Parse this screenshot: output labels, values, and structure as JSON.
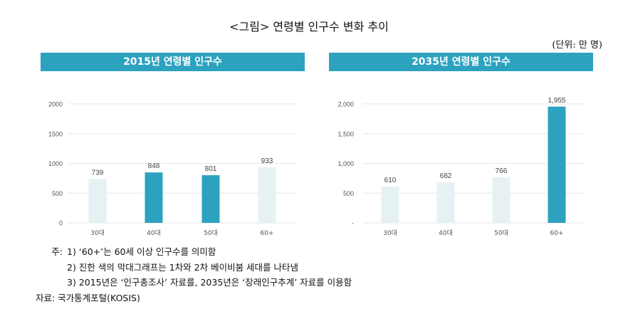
{
  "title": "<그림> 연령별 인구수 변화 추이",
  "unit": "(단위: 만 명)",
  "colors": {
    "header": "#2ca2bf",
    "dark_bar": "#2ca2bf",
    "light_bar": "#e6f1f4",
    "grid": "#e6e6e6"
  },
  "chart_data": [
    {
      "type": "bar",
      "title": "2015년 연령별 인구수",
      "categories": [
        "30대",
        "40대",
        "50대",
        "60+"
      ],
      "values": [
        739,
        848,
        801,
        933
      ],
      "data_labels": [
        "739",
        "848",
        "801",
        "933"
      ],
      "highlight": [
        false,
        true,
        true,
        false
      ],
      "yticks": [
        0,
        500,
        1000,
        1500,
        2000
      ],
      "ytick_labels": [
        "0",
        "500",
        "1000",
        "1500",
        "2000"
      ],
      "ylim": [
        0,
        2000
      ],
      "grid": true
    },
    {
      "type": "bar",
      "title": "2035년 연령별 인구수",
      "categories": [
        "30대",
        "40대",
        "50대",
        "60+"
      ],
      "values": [
        610,
        682,
        766,
        1955
      ],
      "data_labels": [
        "610",
        "682",
        "766",
        "1,955"
      ],
      "highlight": [
        false,
        false,
        false,
        true
      ],
      "yticks": [
        0,
        500,
        1000,
        1500,
        2000
      ],
      "ytick_labels": [
        "-",
        "500",
        "1,000",
        "1,500",
        "2,000"
      ],
      "ylim": [
        0,
        2000
      ],
      "grid": true
    }
  ],
  "notes": {
    "prefix": "주:",
    "items": [
      "1) ‘60+’는 60세 이상 인구수를 의미함",
      "2) 진한 색의 막대그래프는 1차와 2차 베이비붐 세대를 나타냄",
      "3) 2015년은 ‘인구총조사’ 자료를, 2035년은 ‘장래인구추계’ 자료를 이용함"
    ],
    "source": "자료: 국가통계포털(KOSIS)"
  }
}
